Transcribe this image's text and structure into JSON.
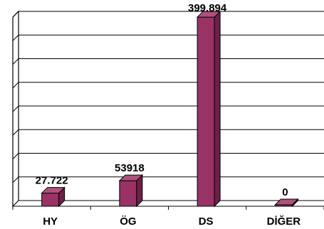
{
  "chart_data": {
    "type": "bar",
    "categories": [
      "HY",
      "ÖG",
      "DS",
      "DİĞER"
    ],
    "values": [
      27722,
      53918,
      399894,
      0
    ],
    "data_labels": [
      "27.722",
      "53918",
      "399.894",
      "0"
    ],
    "title": "",
    "xlabel": "",
    "ylabel": "",
    "ylim": [
      0,
      400000
    ],
    "grid": true,
    "gridline_count": 8,
    "style": "3d-column",
    "colors": {
      "bar_front": "#993366",
      "bar_side": "#6b2146",
      "bar_top": "#b0507c",
      "grid": "#000000",
      "background": "#ffffff"
    }
  }
}
